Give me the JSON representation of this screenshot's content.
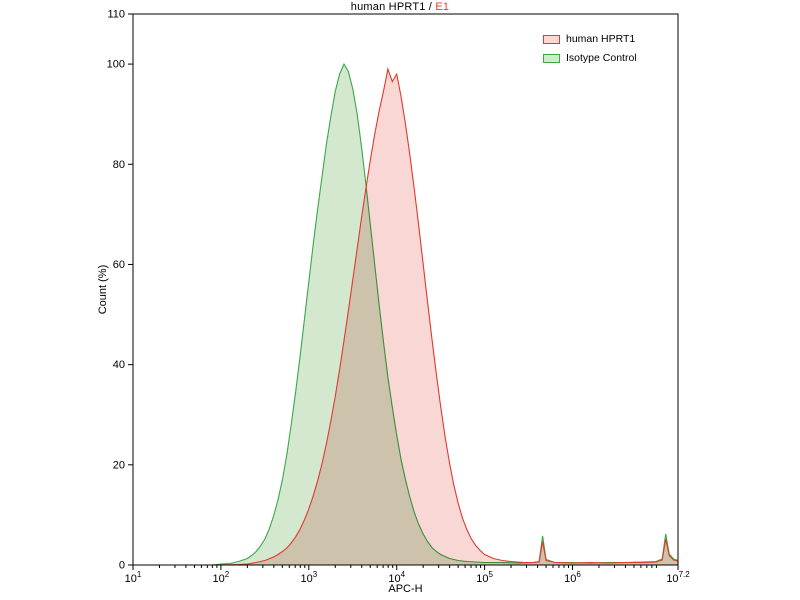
{
  "title": {
    "part1": "human HPRT1 / ",
    "part2": "E1",
    "part2_color": "#e8392e"
  },
  "legend": {
    "position": "top-right",
    "items": [
      {
        "label": "human HPRT1",
        "stroke": "#e0392e",
        "fill": "#f8d7d4"
      },
      {
        "label": "Isotype Control",
        "stroke": "#3aa845",
        "fill": "#d3e8cf"
      }
    ]
  },
  "chart_data": {
    "type": "area",
    "subtype": "flow-cytometry-histogram",
    "title": "human HPRT1 / E1",
    "xlabel": "APC-H",
    "ylabel": "Count  (%)",
    "x_scale": "log10",
    "xlim_log10": [
      1,
      7.2
    ],
    "ylim": [
      0,
      110
    ],
    "xticks_exponents": [
      1,
      2,
      3,
      4,
      5,
      6,
      7.2
    ],
    "yticks": [
      0,
      20,
      40,
      60,
      80,
      100,
      110
    ],
    "grid": false,
    "legend_position": "top-right-inside",
    "series": [
      {
        "name": "Isotype Control",
        "stroke": "#3aa845",
        "fill": "#d3e8cf",
        "peak_log10x": 3.4,
        "peak_value": 100,
        "points_log10x_y": [
          [
            1.0,
            0
          ],
          [
            1.3,
            0
          ],
          [
            1.6,
            0
          ],
          [
            1.9,
            0
          ],
          [
            2.0,
            0.2
          ],
          [
            2.1,
            0.3
          ],
          [
            2.2,
            0.7
          ],
          [
            2.3,
            1.3
          ],
          [
            2.35,
            1.9
          ],
          [
            2.4,
            2.7
          ],
          [
            2.45,
            3.8
          ],
          [
            2.5,
            5.2
          ],
          [
            2.55,
            7.2
          ],
          [
            2.6,
            9.8
          ],
          [
            2.65,
            13
          ],
          [
            2.7,
            17
          ],
          [
            2.75,
            22
          ],
          [
            2.8,
            28
          ],
          [
            2.85,
            34.5
          ],
          [
            2.9,
            41.5
          ],
          [
            2.95,
            49
          ],
          [
            3.0,
            56.5
          ],
          [
            3.05,
            64
          ],
          [
            3.1,
            71
          ],
          [
            3.15,
            77.5
          ],
          [
            3.2,
            84
          ],
          [
            3.25,
            89.5
          ],
          [
            3.3,
            94.5
          ],
          [
            3.35,
            98
          ],
          [
            3.4,
            100
          ],
          [
            3.45,
            98.5
          ],
          [
            3.5,
            95
          ],
          [
            3.55,
            90
          ],
          [
            3.6,
            83.5
          ],
          [
            3.65,
            76
          ],
          [
            3.7,
            68
          ],
          [
            3.75,
            60
          ],
          [
            3.8,
            52
          ],
          [
            3.85,
            44.5
          ],
          [
            3.9,
            37.5
          ],
          [
            3.95,
            31.5
          ],
          [
            4.0,
            26
          ],
          [
            4.05,
            21
          ],
          [
            4.1,
            17
          ],
          [
            4.15,
            13.5
          ],
          [
            4.2,
            10.5
          ],
          [
            4.25,
            8.1
          ],
          [
            4.3,
            6.2
          ],
          [
            4.35,
            4.7
          ],
          [
            4.4,
            3.5
          ],
          [
            4.45,
            2.7
          ],
          [
            4.5,
            2.1
          ],
          [
            4.6,
            1.3
          ],
          [
            4.7,
            0.9
          ],
          [
            4.8,
            0.7
          ],
          [
            4.9,
            0.6
          ],
          [
            5.0,
            0.5
          ],
          [
            5.2,
            0.5
          ],
          [
            5.4,
            0.4
          ],
          [
            5.55,
            0.5
          ],
          [
            5.62,
            0.7
          ],
          [
            5.66,
            5.8
          ],
          [
            5.7,
            1.1
          ],
          [
            5.8,
            0.5
          ],
          [
            6.0,
            0.5
          ],
          [
            6.2,
            0.4
          ],
          [
            6.4,
            0.5
          ],
          [
            6.6,
            0.5
          ],
          [
            6.8,
            0.6
          ],
          [
            6.95,
            0.7
          ],
          [
            7.02,
            1.2
          ],
          [
            7.06,
            6.2
          ],
          [
            7.1,
            2.2
          ],
          [
            7.15,
            1.2
          ],
          [
            7.2,
            0.9
          ]
        ]
      },
      {
        "name": "human HPRT1",
        "stroke": "#e0392e",
        "fill": "#f8d7d4",
        "peak_log10x": 3.9,
        "peak_value": 99,
        "points_log10x_y": [
          [
            1.0,
            0
          ],
          [
            1.5,
            0
          ],
          [
            2.0,
            0
          ],
          [
            2.2,
            0.1
          ],
          [
            2.3,
            0.2
          ],
          [
            2.4,
            0.5
          ],
          [
            2.5,
            0.9
          ],
          [
            2.6,
            1.6
          ],
          [
            2.65,
            2.1
          ],
          [
            2.7,
            2.7
          ],
          [
            2.75,
            3.4
          ],
          [
            2.8,
            4.4
          ],
          [
            2.85,
            5.6
          ],
          [
            2.9,
            7.1
          ],
          [
            2.95,
            9
          ],
          [
            3.0,
            11.2
          ],
          [
            3.05,
            13.8
          ],
          [
            3.1,
            16.8
          ],
          [
            3.15,
            20.2
          ],
          [
            3.2,
            24.2
          ],
          [
            3.25,
            28.7
          ],
          [
            3.3,
            33.6
          ],
          [
            3.35,
            39
          ],
          [
            3.4,
            44.8
          ],
          [
            3.45,
            50.8
          ],
          [
            3.5,
            57
          ],
          [
            3.55,
            63.2
          ],
          [
            3.6,
            69.3
          ],
          [
            3.65,
            75.2
          ],
          [
            3.7,
            80.8
          ],
          [
            3.75,
            86
          ],
          [
            3.8,
            90.6
          ],
          [
            3.85,
            94.6
          ],
          [
            3.9,
            99
          ],
          [
            3.95,
            96.5
          ],
          [
            4.0,
            98
          ],
          [
            4.05,
            93.5
          ],
          [
            4.1,
            88
          ],
          [
            4.15,
            81.8
          ],
          [
            4.2,
            75
          ],
          [
            4.25,
            67.8
          ],
          [
            4.3,
            60.2
          ],
          [
            4.35,
            52.6
          ],
          [
            4.4,
            45.2
          ],
          [
            4.45,
            38.2
          ],
          [
            4.5,
            31.6
          ],
          [
            4.55,
            25.6
          ],
          [
            4.6,
            20.4
          ],
          [
            4.65,
            16
          ],
          [
            4.7,
            12.3
          ],
          [
            4.75,
            9.3
          ],
          [
            4.8,
            7
          ],
          [
            4.85,
            5.2
          ],
          [
            4.9,
            3.9
          ],
          [
            4.95,
            2.9
          ],
          [
            5.0,
            2.1
          ],
          [
            5.1,
            1.3
          ],
          [
            5.2,
            0.9
          ],
          [
            5.3,
            0.7
          ],
          [
            5.45,
            0.5
          ],
          [
            5.55,
            0.5
          ],
          [
            5.62,
            0.6
          ],
          [
            5.66,
            4.7
          ],
          [
            5.7,
            0.9
          ],
          [
            5.8,
            0.5
          ],
          [
            6.0,
            0.4
          ],
          [
            6.2,
            0.5
          ],
          [
            6.4,
            0.4
          ],
          [
            6.6,
            0.5
          ],
          [
            6.8,
            0.5
          ],
          [
            6.95,
            0.6
          ],
          [
            7.02,
            1.0
          ],
          [
            7.06,
            5.2
          ],
          [
            7.1,
            1.9
          ],
          [
            7.15,
            1.0
          ],
          [
            7.2,
            0.8
          ]
        ]
      }
    ]
  }
}
